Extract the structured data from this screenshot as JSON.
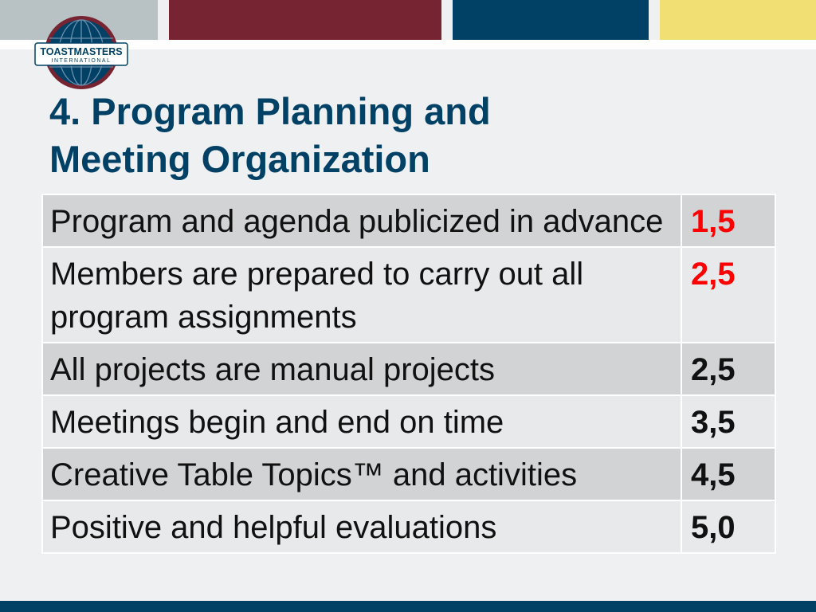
{
  "header_bands": [
    {
      "name": "cool-gray",
      "color": "#b8c1c3"
    },
    {
      "name": "loyal-blue-maroon",
      "color": "#772432"
    },
    {
      "name": "loyal-blue",
      "color": "#004165"
    },
    {
      "name": "happy-yellow",
      "color": "#f2df74"
    }
  ],
  "logo": {
    "icon": "toastmasters-globe-logo",
    "line1": "TOASTMASTERS",
    "line2": "INTERNATIONAL",
    "colors": {
      "globe": "#004165",
      "ring": "#772432",
      "banner": "#ffffff"
    }
  },
  "title": {
    "line1": "4. Program Planning and",
    "line2": "Meeting Organization",
    "color": "#004165"
  },
  "table": {
    "rows": [
      {
        "label": "Program and agenda publicized in advance",
        "value": "1,5",
        "value_color": "#ff0000"
      },
      {
        "label": "Members are prepared to carry out all program assignments",
        "value": "2,5",
        "value_color": "#ff0000"
      },
      {
        "label": "All projects are manual projects",
        "value": "2,5",
        "value_color": "#111111"
      },
      {
        "label": "Meetings begin and end on time",
        "value": "3,5",
        "value_color": "#111111"
      },
      {
        "label": "Creative Table Topics™ and activities",
        "value": "4,5",
        "value_color": "#111111"
      },
      {
        "label": "Positive and helpful evaluations",
        "value": "5,0",
        "value_color": "#111111"
      }
    ]
  },
  "footer_bar_color": "#004165"
}
